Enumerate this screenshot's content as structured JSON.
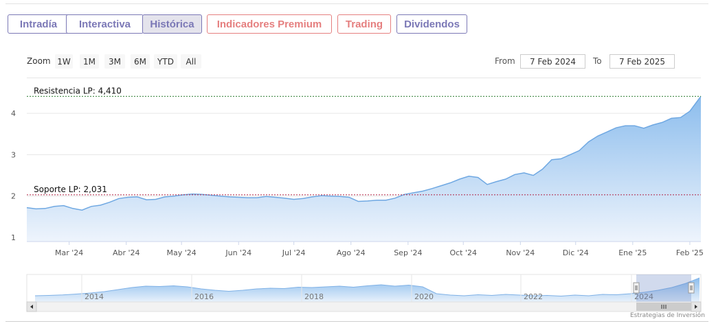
{
  "tabs": [
    {
      "label": "Intradía",
      "color": "#7B78B6",
      "active": false
    },
    {
      "label": "Interactiva",
      "color": "#7B78B6",
      "active": false
    },
    {
      "label": "Histórica",
      "color": "#7B78B6",
      "active": true
    },
    {
      "label": "Indicadores Premium",
      "color": "#E57F7F",
      "active": false
    },
    {
      "label": "Trading",
      "color": "#E57F7F",
      "active": false
    },
    {
      "label": "Dividendos",
      "color": "#7B78B6",
      "active": false
    }
  ],
  "zoom": {
    "label": "Zoom",
    "buttons": [
      "1W",
      "1M",
      "3M",
      "6M",
      "YTD",
      "All"
    ]
  },
  "range": {
    "from_label": "From",
    "from_value": "7 Feb 2024",
    "to_label": "To",
    "to_value": "7 Feb 2025"
  },
  "credit": "Estrategias de Inversión",
  "chart_data": {
    "type": "area",
    "title": "",
    "xlabel": "",
    "ylabel": "",
    "ylim": [
      0.9,
      4.5
    ],
    "y_ticks": [
      "1",
      "2",
      "3",
      "4"
    ],
    "x_ticks": [
      "Mar '24",
      "Abr '24",
      "May '24",
      "Jun '24",
      "Jul '24",
      "Ago '24",
      "Sep '24",
      "Oct '24",
      "Nov '24",
      "Dic '24",
      "Ene '25",
      "Feb '25"
    ],
    "x_range": [
      "2024-02-07",
      "2025-02-07"
    ],
    "colors": {
      "line": "#6FA8E2",
      "fill_top": "#8CBDED",
      "fill_bottom": "#EEF4FC",
      "resistance": "#2E7D32",
      "support": "#B22244"
    },
    "reference_lines": [
      {
        "label": "Resistencia LP: 4,410",
        "value": 4.41,
        "style": "dashed"
      },
      {
        "label": "Soporte LP: 2,031",
        "value": 2.031,
        "style": "dashed"
      }
    ],
    "series": [
      {
        "x": [
          "2024-02-07",
          "2024-02-12",
          "2024-02-17",
          "2024-02-22",
          "2024-02-27",
          "2024-03-03",
          "2024-03-08",
          "2024-03-13",
          "2024-03-18",
          "2024-03-23",
          "2024-03-28",
          "2024-04-02",
          "2024-04-07",
          "2024-04-12",
          "2024-04-17",
          "2024-04-22",
          "2024-04-27",
          "2024-05-02",
          "2024-05-07",
          "2024-05-12",
          "2024-05-17",
          "2024-05-22",
          "2024-05-27",
          "2024-06-01",
          "2024-06-06",
          "2024-06-11",
          "2024-06-16",
          "2024-06-21",
          "2024-06-26",
          "2024-07-01",
          "2024-07-06",
          "2024-07-11",
          "2024-07-16",
          "2024-07-21",
          "2024-07-26",
          "2024-07-31",
          "2024-08-05",
          "2024-08-10",
          "2024-08-15",
          "2024-08-20",
          "2024-08-25",
          "2024-08-30",
          "2024-09-04",
          "2024-09-09",
          "2024-09-14",
          "2024-09-19",
          "2024-09-24",
          "2024-09-29",
          "2024-10-04",
          "2024-10-09",
          "2024-10-14",
          "2024-10-19",
          "2024-10-24",
          "2024-10-29",
          "2024-11-03",
          "2024-11-08",
          "2024-11-13",
          "2024-11-18",
          "2024-11-23",
          "2024-11-28",
          "2024-12-03",
          "2024-12-08",
          "2024-12-13",
          "2024-12-18",
          "2024-12-23",
          "2024-12-28",
          "2025-01-02",
          "2025-01-07",
          "2025-01-12",
          "2025-01-17",
          "2025-01-22",
          "2025-01-27",
          "2025-02-01",
          "2025-02-07"
        ],
        "values": [
          1.72,
          1.69,
          1.7,
          1.75,
          1.77,
          1.7,
          1.66,
          1.75,
          1.78,
          1.85,
          1.94,
          1.97,
          1.98,
          1.91,
          1.92,
          1.98,
          2.0,
          2.03,
          2.05,
          2.04,
          2.02,
          2.0,
          1.98,
          1.97,
          1.96,
          1.96,
          1.99,
          1.97,
          1.95,
          1.92,
          1.94,
          1.98,
          2.01,
          2.0,
          1.99,
          1.97,
          1.87,
          1.88,
          1.9,
          1.9,
          1.95,
          2.04,
          2.08,
          2.12,
          2.18,
          2.25,
          2.32,
          2.41,
          2.48,
          2.45,
          2.28,
          2.35,
          2.41,
          2.52,
          2.56,
          2.5,
          2.65,
          2.88,
          2.9,
          3.0,
          3.1,
          3.31,
          3.45,
          3.55,
          3.65,
          3.7,
          3.7,
          3.64,
          3.72,
          3.78,
          3.88,
          3.9,
          4.05,
          4.41
        ]
      }
    ],
    "navigator": {
      "x_ticks": [
        "2014",
        "2016",
        "2018",
        "2020",
        "2022",
        "2024"
      ],
      "values": [
        1.3,
        1.35,
        1.42,
        1.55,
        1.7,
        1.9,
        2.2,
        2.5,
        2.7,
        2.65,
        2.75,
        2.6,
        2.3,
        2.1,
        1.95,
        2.1,
        2.3,
        2.4,
        2.35,
        2.55,
        2.5,
        2.6,
        2.7,
        2.55,
        2.75,
        2.9,
        2.7,
        2.85,
        2.6,
        1.6,
        1.4,
        1.3,
        1.45,
        1.35,
        1.5,
        1.4,
        1.3,
        1.35,
        1.25,
        1.4,
        1.3,
        1.5,
        1.45,
        1.6,
        1.8,
        2.1,
        2.5,
        3.1,
        3.9
      ]
    }
  }
}
